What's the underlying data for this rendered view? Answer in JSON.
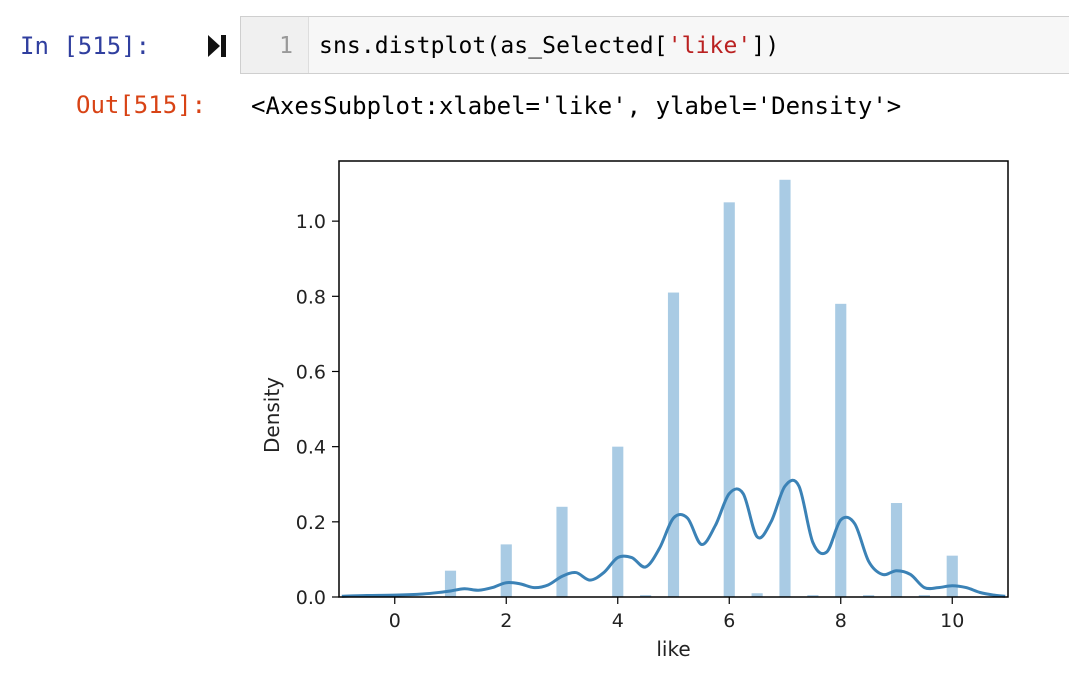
{
  "cell": {
    "in_prompt": "In [515]:",
    "line_number": "1",
    "code": {
      "prefix": "sns.distplot(as_Selected[",
      "string": "'like'",
      "suffix": "])"
    },
    "out_prompt": "Out[515]:",
    "output_text": "<AxesSubplot:xlabel='like', ylabel='Density'>",
    "run_icon": "run-cell-icon"
  },
  "chart_data": {
    "type": "bar",
    "title": "",
    "xlabel": "like",
    "ylabel": "Density",
    "xlim": [
      -1,
      11
    ],
    "ylim": [
      0,
      1.16
    ],
    "xticks": [
      0,
      2,
      4,
      6,
      8,
      10
    ],
    "xtick_labels": [
      "0",
      "2",
      "4",
      "6",
      "8",
      "10"
    ],
    "yticks": [
      0.0,
      0.2,
      0.4,
      0.6,
      0.8,
      1.0
    ],
    "ytick_labels": [
      "0.0",
      "0.2",
      "0.4",
      "0.6",
      "0.8",
      "1.0"
    ],
    "colors": {
      "bars": "#a9cbe4",
      "kde": "#3b82b6",
      "axes": "#000000"
    },
    "histogram": {
      "bin_width": 0.2,
      "bins": [
        {
          "x": 1.0,
          "density": 0.07
        },
        {
          "x": 2.0,
          "density": 0.14
        },
        {
          "x": 3.0,
          "density": 0.24
        },
        {
          "x": 4.0,
          "density": 0.4
        },
        {
          "x": 4.5,
          "density": 0.005
        },
        {
          "x": 5.0,
          "density": 0.81
        },
        {
          "x": 6.0,
          "density": 1.05
        },
        {
          "x": 6.5,
          "density": 0.01
        },
        {
          "x": 7.0,
          "density": 1.11
        },
        {
          "x": 7.5,
          "density": 0.005
        },
        {
          "x": 8.0,
          "density": 0.78
        },
        {
          "x": 8.5,
          "density": 0.005
        },
        {
          "x": 9.0,
          "density": 0.25
        },
        {
          "x": 9.5,
          "density": 0.005
        },
        {
          "x": 10.0,
          "density": 0.11
        }
      ]
    },
    "kde": {
      "x": [
        -0.95,
        -0.5,
        0,
        0.5,
        0.85,
        1.0,
        1.25,
        1.5,
        1.75,
        2.0,
        2.25,
        2.5,
        2.75,
        3.0,
        3.25,
        3.5,
        3.75,
        4.0,
        4.25,
        4.5,
        4.75,
        5.0,
        5.25,
        5.5,
        5.75,
        6.0,
        6.25,
        6.5,
        6.75,
        7.0,
        7.25,
        7.5,
        7.75,
        8.0,
        8.25,
        8.5,
        8.75,
        9.0,
        9.25,
        9.5,
        9.75,
        10.0,
        10.25,
        10.5,
        10.75,
        10.95
      ],
      "y": [
        0.002,
        0.004,
        0.005,
        0.008,
        0.013,
        0.016,
        0.022,
        0.018,
        0.025,
        0.038,
        0.035,
        0.025,
        0.032,
        0.055,
        0.065,
        0.045,
        0.065,
        0.105,
        0.105,
        0.08,
        0.13,
        0.21,
        0.21,
        0.14,
        0.19,
        0.275,
        0.275,
        0.16,
        0.2,
        0.295,
        0.295,
        0.145,
        0.12,
        0.205,
        0.195,
        0.095,
        0.06,
        0.07,
        0.06,
        0.025,
        0.025,
        0.03,
        0.025,
        0.012,
        0.005,
        0.002
      ]
    }
  }
}
